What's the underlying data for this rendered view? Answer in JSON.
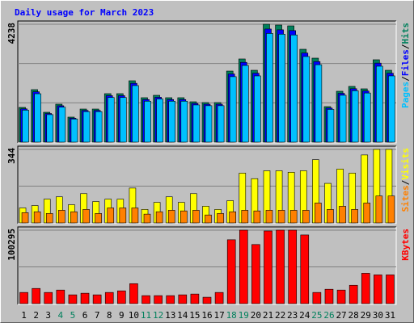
{
  "chart_data": [
    {
      "type": "bar",
      "title": "Daily usage for March 2023",
      "ylim": [
        0,
        4238
      ],
      "yticks": [
        4238
      ],
      "separator": "/",
      "series": [
        {
          "name": "Hits",
          "color": "#00805C",
          "values": [
            1248,
            1887,
            1074,
            1364,
            900,
            1190,
            1190,
            1742,
            1742,
            2206,
            1597,
            1683,
            1597,
            1597,
            1451,
            1422,
            1422,
            2554,
            2990,
            2583,
            4238,
            4209,
            4180,
            3338,
            3019,
            1277,
            1829,
            2003,
            1916,
            2961,
            2583
          ]
        },
        {
          "name": "Files",
          "color": "#0000FF",
          "values": [
            1196,
            1810,
            1030,
            1308,
            862,
            1140,
            1140,
            1670,
            1670,
            2115,
            1531,
            1614,
            1531,
            1531,
            1391,
            1363,
            1363,
            2450,
            2868,
            2477,
            4066,
            4038,
            4010,
            3202,
            2896,
            1224,
            1754,
            1921,
            1838,
            2840,
            2477
          ]
        },
        {
          "name": "Pages",
          "color": "#00C0FF",
          "values": [
            1150,
            1740,
            990,
            1257,
            829,
            1096,
            1096,
            1605,
            1605,
            2033,
            1472,
            1551,
            1472,
            1472,
            1337,
            1310,
            1310,
            2354,
            2756,
            2381,
            3907,
            3880,
            3853,
            3077,
            2783,
            1177,
            1686,
            1846,
            1766,
            2729,
            2381
          ]
        }
      ]
    },
    {
      "type": "bar",
      "ylim": [
        0,
        344
      ],
      "yticks": [
        344
      ],
      "series": [
        {
          "name": "Visits",
          "color": "#FFFF00",
          "values": [
            70,
            81,
            111,
            122,
            85,
            137,
            100,
            111,
            111,
            163,
            63,
            96,
            122,
            96,
            137,
            78,
            63,
            104,
            233,
            207,
            244,
            244,
            237,
            244,
            296,
            185,
            252,
            233,
            318,
            344,
            344
          ]
        },
        {
          "name": "Sites",
          "color": "#FF8000",
          "values": [
            48,
            52,
            44,
            59,
            52,
            63,
            44,
            70,
            70,
            70,
            41,
            52,
            59,
            56,
            59,
            37,
            44,
            52,
            59,
            56,
            59,
            59,
            59,
            59,
            93,
            63,
            78,
            63,
            93,
            126,
            126
          ]
        }
      ]
    },
    {
      "type": "bar",
      "ylim": [
        0,
        100295
      ],
      "yticks": [
        100295
      ],
      "categories": [
        "1",
        "2",
        "3",
        "4",
        "5",
        "6",
        "7",
        "8",
        "9",
        "10",
        "11",
        "12",
        "13",
        "14",
        "15",
        "16",
        "17",
        "18",
        "19",
        "20",
        "21",
        "22",
        "23",
        "24",
        "25",
        "26",
        "27",
        "28",
        "29",
        "30",
        "31"
      ],
      "highlighted": [
        "4",
        "5",
        "11",
        "12",
        "18",
        "19",
        "25",
        "26"
      ],
      "highlight_color": "#00805C",
      "series": [
        {
          "name": "KBytes",
          "color": "#FF0000",
          "values": [
            15262,
            20713,
            15262,
            18533,
            11992,
            14172,
            11992,
            15262,
            17442,
            27253,
            10902,
            10902,
            10902,
            11992,
            13082,
            8721,
            15262,
            87213,
            100295,
            80672,
            99205,
            100295,
            100295,
            93754,
            15262,
            19623,
            18533,
            25073,
            41426,
            39246,
            39246
          ]
        }
      ]
    }
  ]
}
